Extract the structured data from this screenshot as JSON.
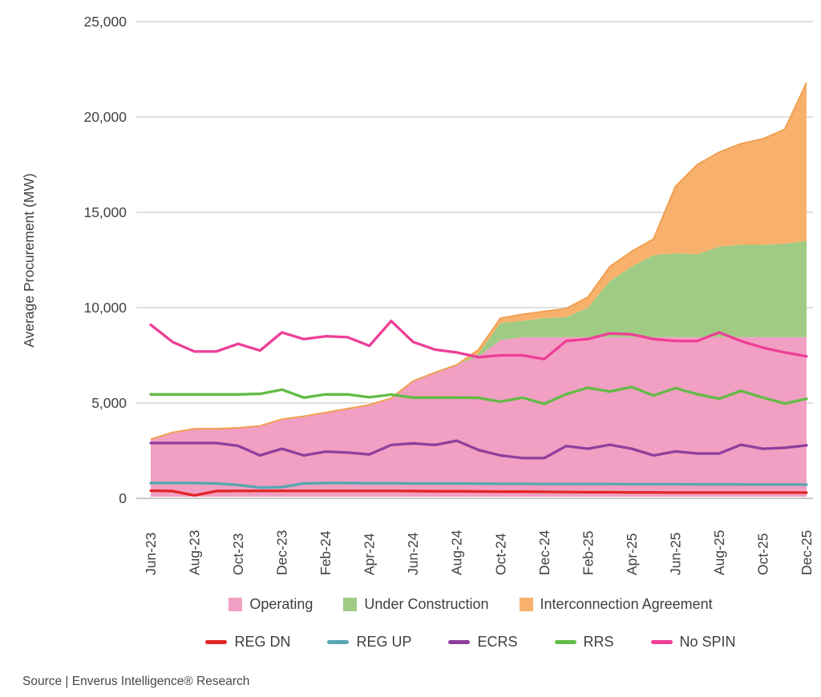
{
  "source": {
    "text": "Source | Enverus Intelligence® Research"
  },
  "chart_data": {
    "type": "stacked-area+line",
    "title": "",
    "xlabel": "",
    "ylabel": "Average Procurement (MW)",
    "ylim": [
      0,
      25000
    ],
    "ytick_step": 5000,
    "ytick_labels": [
      "0",
      "5,000",
      "10,000",
      "15,000",
      "20,000",
      "25,000"
    ],
    "grid": true,
    "legend_position": "bottom",
    "x_labels_shown": [
      "Jun-23",
      "Aug-23",
      "Oct-23",
      "Dec-23",
      "Feb-24",
      "Apr-24",
      "Jun-24",
      "Aug-24",
      "Oct-24",
      "Dec-24",
      "Feb-25",
      "Apr-25",
      "Jun-25",
      "Aug-25",
      "Oct-25",
      "Dec-25"
    ],
    "months": [
      "Jun-23",
      "Jul-23",
      "Aug-23",
      "Sep-23",
      "Oct-23",
      "Nov-23",
      "Dec-23",
      "Jan-24",
      "Feb-24",
      "Mar-24",
      "Apr-24",
      "May-24",
      "Jun-24",
      "Jul-24",
      "Aug-24",
      "Sep-24",
      "Oct-24",
      "Nov-24",
      "Dec-24",
      "Jan-25",
      "Feb-25",
      "Mar-25",
      "Apr-25",
      "May-25",
      "Jun-25",
      "Jul-25",
      "Aug-25",
      "Sep-25",
      "Oct-25",
      "Nov-25",
      "Dec-25"
    ],
    "stacked_areas": [
      {
        "name": "Operating",
        "color": "#F19FC3",
        "values": [
          3100,
          3450,
          3650,
          3650,
          3700,
          3800,
          4150,
          4300,
          4500,
          4700,
          4900,
          5250,
          6150,
          6600,
          7000,
          7450,
          8300,
          8450,
          8450,
          8450,
          8450,
          8450,
          8450,
          8450,
          8450,
          8450,
          8450,
          8450,
          8450,
          8450,
          8450
        ]
      },
      {
        "name": "Under Construction",
        "color": "#9FCB84",
        "values": [
          0,
          0,
          0,
          0,
          0,
          0,
          0,
          0,
          0,
          0,
          0,
          0,
          0,
          0,
          0,
          150,
          900,
          850,
          1000,
          1050,
          1550,
          2950,
          3700,
          4300,
          4400,
          4350,
          4750,
          4850,
          4850,
          4900,
          5050
        ]
      },
      {
        "name": "Interconnection Agreement",
        "color": "#F8B16C",
        "edge": "#F0A050",
        "values": [
          0,
          0,
          0,
          0,
          0,
          0,
          0,
          0,
          0,
          0,
          0,
          0,
          0,
          0,
          0,
          200,
          250,
          350,
          350,
          450,
          550,
          750,
          800,
          850,
          3500,
          4700,
          4950,
          5300,
          5550,
          6000,
          8300
        ]
      }
    ],
    "lines": [
      {
        "name": "REG DN",
        "color": "#E12726",
        "values": [
          400,
          380,
          150,
          380,
          390,
          390,
          390,
          390,
          390,
          390,
          390,
          390,
          380,
          370,
          370,
          360,
          350,
          350,
          340,
          330,
          320,
          320,
          310,
          310,
          300,
          300,
          300,
          300,
          300,
          300,
          300
        ]
      },
      {
        "name": "REG UP",
        "color": "#56A7B1",
        "values": [
          800,
          800,
          800,
          780,
          700,
          560,
          590,
          780,
          800,
          800,
          790,
          790,
          780,
          780,
          780,
          770,
          760,
          760,
          750,
          750,
          750,
          750,
          740,
          740,
          740,
          730,
          730,
          730,
          720,
          720,
          720
        ]
      },
      {
        "name": "ECRS",
        "color": "#8E3F9C",
        "values": [
          2900,
          2900,
          2900,
          2900,
          2750,
          2250,
          2600,
          2250,
          2450,
          2400,
          2300,
          2800,
          2880,
          2800,
          3020,
          2530,
          2250,
          2110,
          2110,
          2740,
          2600,
          2810,
          2600,
          2250,
          2460,
          2350,
          2350,
          2810,
          2600,
          2650,
          2780
        ]
      },
      {
        "name": "RRS",
        "color": "#62BB46",
        "values": [
          5450,
          5450,
          5450,
          5450,
          5450,
          5480,
          5700,
          5280,
          5450,
          5450,
          5300,
          5440,
          5280,
          5280,
          5280,
          5270,
          5070,
          5280,
          4950,
          5460,
          5800,
          5600,
          5840,
          5390,
          5780,
          5460,
          5220,
          5640,
          5280,
          4970,
          5220
        ]
      },
      {
        "name": "No SPIN",
        "color": "#EE3E96",
        "values": [
          9100,
          8200,
          7700,
          7700,
          8100,
          7750,
          8700,
          8350,
          8500,
          8450,
          8000,
          9300,
          8200,
          7800,
          7650,
          7400,
          7500,
          7500,
          7300,
          8250,
          8350,
          8650,
          8600,
          8350,
          8250,
          8250,
          8700,
          8250,
          7900,
          7650,
          7450
        ]
      }
    ],
    "style": {
      "grid_color": "#CDCDCD",
      "zero_line_color": "#A8A8A8",
      "text_color": "#414141"
    }
  }
}
